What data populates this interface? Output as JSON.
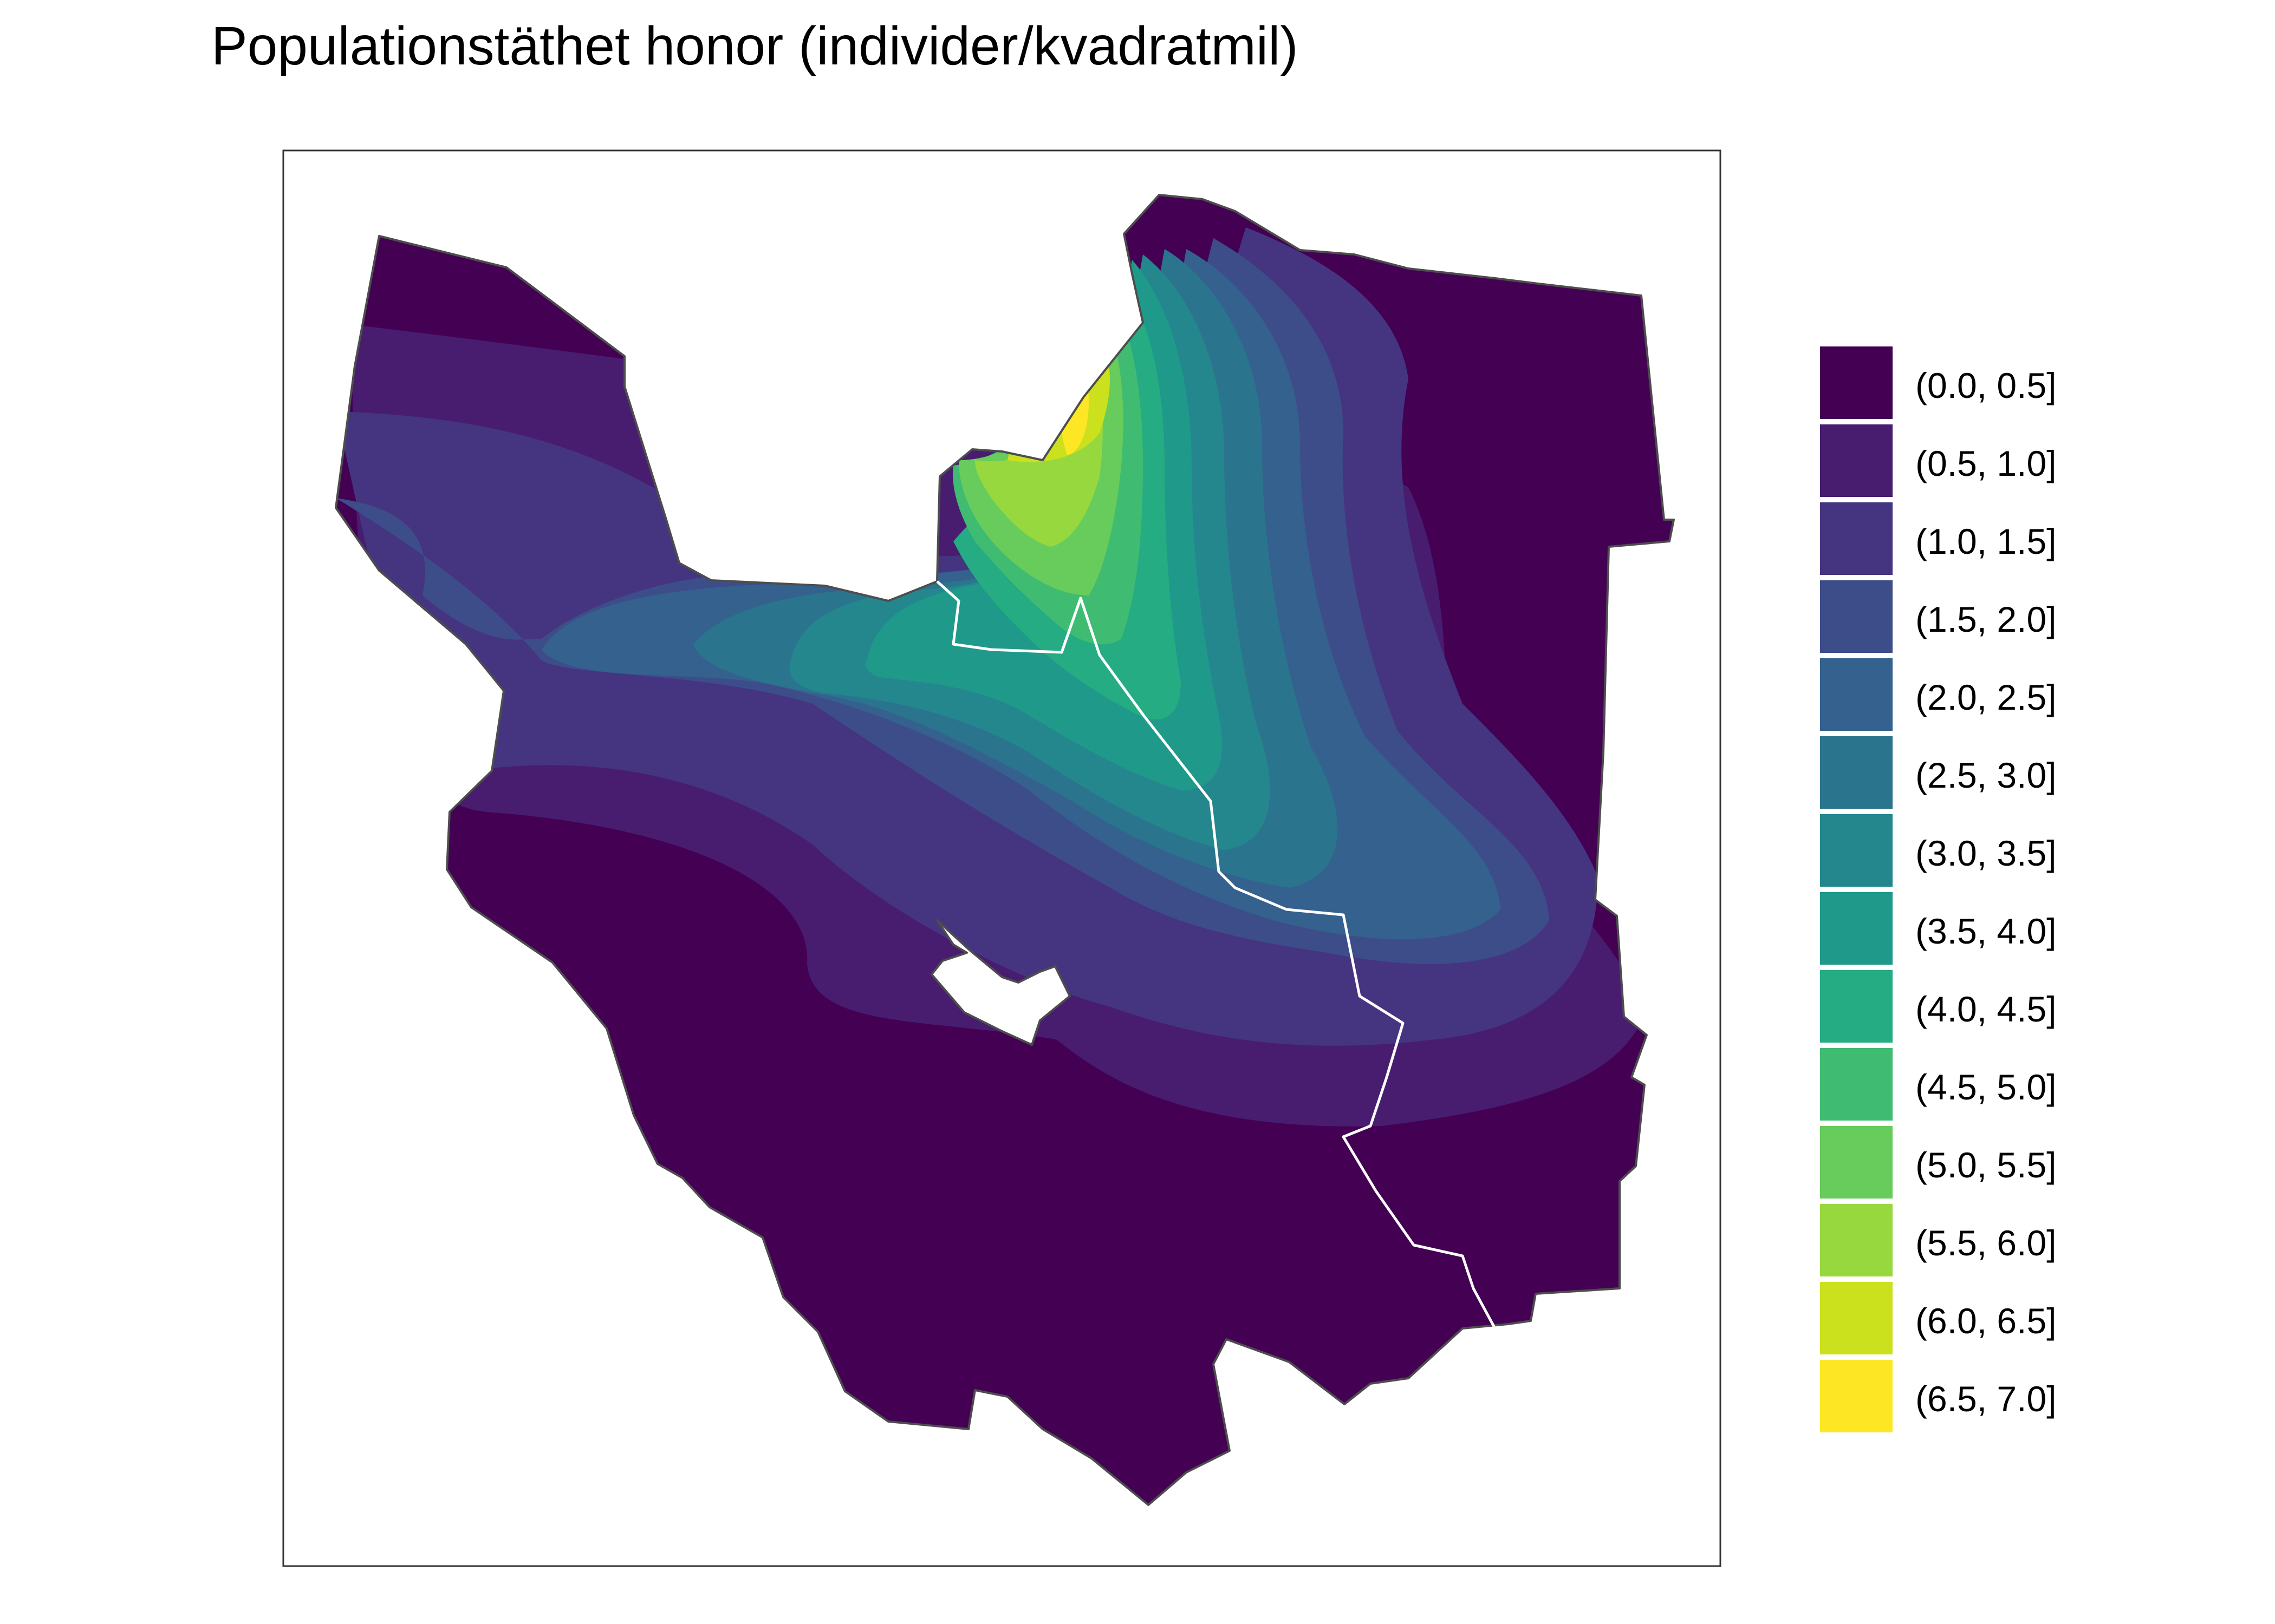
{
  "title": "Populationstäthet honor (individer/kvadratmil)",
  "legend": {
    "items": [
      {
        "label": "(0.0, 0.5]",
        "color": "#440154"
      },
      {
        "label": "(0.5, 1.0]",
        "color": "#481d6f"
      },
      {
        "label": "(1.0, 1.5]",
        "color": "#453581"
      },
      {
        "label": "(1.5, 2.0]",
        "color": "#3d4d8a"
      },
      {
        "label": "(2.0, 2.5]",
        "color": "#34618d"
      },
      {
        "label": "(2.5, 3.0]",
        "color": "#2b748e"
      },
      {
        "label": "(3.0, 3.5]",
        "color": "#24878e"
      },
      {
        "label": "(3.5, 4.0]",
        "color": "#1f998a"
      },
      {
        "label": "(4.0, 4.5]",
        "color": "#25ac82"
      },
      {
        "label": "(4.5, 5.0]",
        "color": "#40bc72"
      },
      {
        "label": "(5.0, 5.5]",
        "color": "#67cc5c"
      },
      {
        "label": "(5.5, 6.0]",
        "color": "#97d83f"
      },
      {
        "label": "(6.0, 6.5]",
        "color": "#cbe11e"
      },
      {
        "label": "(6.5, 7.0]",
        "color": "#fde725"
      }
    ]
  },
  "colors": {
    "outline": "#4d4d4d",
    "internal_border": "#ffffff",
    "panel_border": "#333333"
  }
}
